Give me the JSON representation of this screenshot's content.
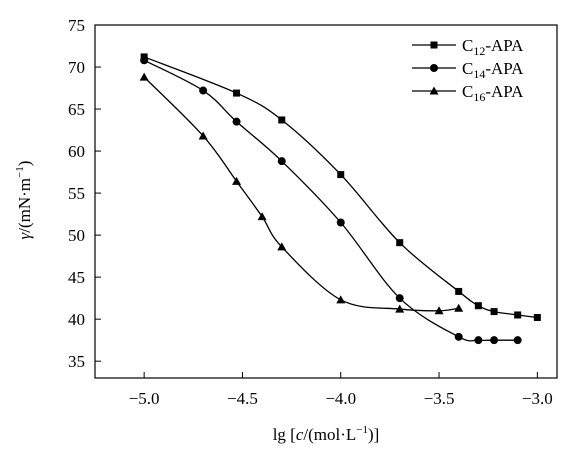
{
  "chart_data": {
    "type": "line",
    "xlabel_parts": [
      "lg [",
      "c",
      "/(mol·L",
      "−1",
      ")]"
    ],
    "ylabel_parts": [
      "γ",
      "/(mN·m",
      "−1",
      ")"
    ],
    "xlim": [
      -5.25,
      -2.9
    ],
    "ylim": [
      33,
      75
    ],
    "xticks": [
      -5.0,
      -4.5,
      -4.0,
      -3.5,
      -3.0
    ],
    "xtick_labels": [
      "−5.0",
      "−4.5",
      "−4.0",
      "−3.5",
      "−3.0"
    ],
    "yticks": [
      35,
      40,
      45,
      50,
      55,
      60,
      65,
      70,
      75
    ],
    "ytick_labels": [
      "35",
      "40",
      "45",
      "50",
      "55",
      "60",
      "65",
      "70",
      "75"
    ],
    "grid": false,
    "legend_position": "top-right",
    "series": [
      {
        "name_parts": [
          "C",
          "12",
          "-APA"
        ],
        "marker": "square",
        "x": [
          -5.0,
          -4.53,
          -4.3,
          -4.0,
          -3.7,
          -3.4,
          -3.3,
          -3.22,
          -3.1,
          -3.0
        ],
        "y": [
          71.2,
          66.9,
          63.7,
          57.2,
          49.1,
          43.3,
          41.6,
          40.9,
          40.5,
          40.2
        ]
      },
      {
        "name_parts": [
          "C",
          "14",
          "-APA"
        ],
        "marker": "circle",
        "x": [
          -5.0,
          -4.7,
          -4.53,
          -4.3,
          -4.0,
          -3.7,
          -3.4,
          -3.3,
          -3.22,
          -3.1
        ],
        "y": [
          70.8,
          67.2,
          63.5,
          58.8,
          51.5,
          42.5,
          37.9,
          37.5,
          37.5,
          37.5
        ]
      },
      {
        "name_parts": [
          "C",
          "16",
          "-APA"
        ],
        "marker": "triangle",
        "x": [
          -5.0,
          -4.7,
          -4.53,
          -4.4,
          -4.3,
          -4.0,
          -3.7,
          -3.5,
          -3.4
        ],
        "y": [
          68.8,
          61.8,
          56.4,
          52.2,
          48.6,
          42.3,
          41.2,
          41.0,
          41.3
        ]
      }
    ]
  }
}
